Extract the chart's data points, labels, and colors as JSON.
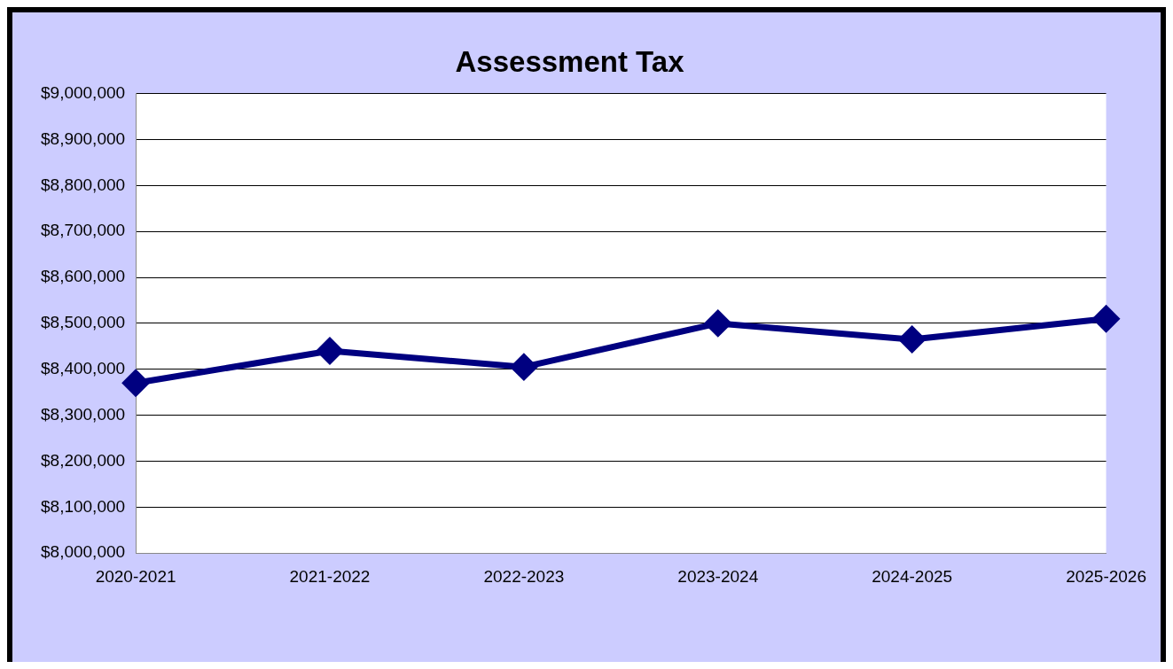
{
  "chart_data": {
    "type": "line",
    "title": "Assessment Tax",
    "categories": [
      "2020-2021",
      "2021-2022",
      "2022-2023",
      "2023-2024",
      "2024-2025",
      "2025-2026"
    ],
    "series": [
      {
        "color": "#000080",
        "values": [
          8370000,
          8440000,
          8405000,
          8500000,
          8465000,
          8510000
        ]
      }
    ],
    "ylim": [
      8000000,
      9000000
    ],
    "yticks": [
      {
        "value": 8000000,
        "label": "$8,000,000"
      },
      {
        "value": 8100000,
        "label": "$8,100,000"
      },
      {
        "value": 8200000,
        "label": "$8,200,000"
      },
      {
        "value": 8300000,
        "label": "$8,300,000"
      },
      {
        "value": 8400000,
        "label": "$8,400,000"
      },
      {
        "value": 8500000,
        "label": "$8,500,000"
      },
      {
        "value": 8600000,
        "label": "$8,600,000"
      },
      {
        "value": 8700000,
        "label": "$8,700,000"
      },
      {
        "value": 8800000,
        "label": "$8,800,000"
      },
      {
        "value": 8900000,
        "label": "$8,900,000"
      },
      {
        "value": 9000000,
        "label": "$9,000,000"
      }
    ],
    "grid": "y",
    "marker": "diamond",
    "line_style": "solid"
  }
}
